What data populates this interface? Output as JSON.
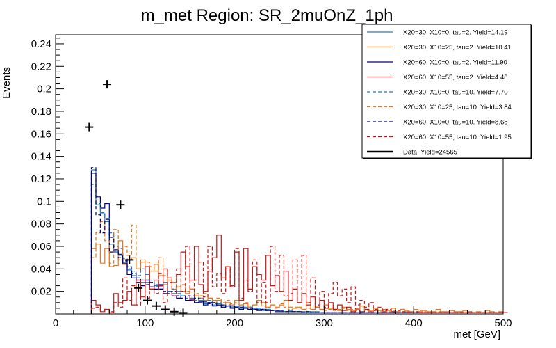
{
  "chart_data": {
    "type": "histogram-step",
    "title": "m_met Region: SR_2muOnZ_1ph",
    "xlabel": "met [GeV]",
    "ylabel": "Events",
    "xlim": [
      0,
      500
    ],
    "ylim": [
      0,
      0.248
    ],
    "x_ticks": [
      0,
      100,
      200,
      300,
      400,
      500
    ],
    "x_tick_labels": [
      "0",
      "100",
      "200",
      "300",
      "400",
      "500"
    ],
    "y_ticks": [
      0.02,
      0.04,
      0.06,
      0.08,
      0.1,
      0.12,
      0.14,
      0.16,
      0.18,
      0.2,
      0.22,
      0.24
    ],
    "y_tick_labels": [
      "0.02",
      "0.04",
      "0.06",
      "0.08",
      "0.1",
      "0.12",
      "0.14",
      "0.16",
      "0.18",
      "0.2",
      "0.22",
      "0.24"
    ],
    "legend_position": "top-right",
    "bin_start": 40,
    "bin_width": 5,
    "series": [
      {
        "name": "X20=30, X10=0, tau=2. Yield=14.19",
        "color": "#2b7bb9",
        "dashed": false,
        "values": [
          0.128,
          0.097,
          0.089,
          0.082,
          0.062,
          0.055,
          0.052,
          0.046,
          0.039,
          0.034,
          0.03,
          0.028,
          0.035,
          0.022,
          0.025,
          0.022,
          0.028,
          0.02,
          0.018,
          0.02,
          0.016,
          0.012,
          0.014,
          0.01,
          0.012,
          0.009,
          0.01,
          0.008,
          0.009,
          0.006,
          0.007,
          0.006,
          0.007,
          0.005,
          0.006,
          0.004,
          0.005,
          0.004,
          0.003,
          0.004,
          0.003,
          0.003,
          0.002,
          0.002,
          0.003,
          0.002,
          0.002,
          0.002,
          0.001,
          0.002,
          0.001,
          0.001,
          0.001,
          0.001,
          0.001,
          0.001,
          0.001,
          0.001,
          0.001,
          0.001,
          0.001,
          0.001,
          0.001,
          0.001,
          0.001,
          0.001,
          0.001,
          0.001,
          0.001,
          0.001,
          0.001,
          0.001,
          0.001,
          0.001,
          0.001,
          0.001,
          0.001,
          0.001,
          0.001,
          0.001,
          0.001,
          0.001,
          0.001,
          0.001,
          0.001,
          0.001,
          0.001,
          0.001,
          0.001,
          0.001,
          0.001,
          0.001,
          0.001
        ]
      },
      {
        "name": "X20=30, X10=25, tau=2. Yield=10.41",
        "color": "#e8751a",
        "dashed": false,
        "values": [
          0.058,
          0.062,
          0.045,
          0.058,
          0.042,
          0.043,
          0.065,
          0.044,
          0.048,
          0.05,
          0.04,
          0.046,
          0.03,
          0.038,
          0.044,
          0.034,
          0.026,
          0.03,
          0.022,
          0.024,
          0.02,
          0.018,
          0.022,
          0.016,
          0.014,
          0.012,
          0.014,
          0.01,
          0.012,
          0.008,
          0.01,
          0.008,
          0.012,
          0.008,
          0.009,
          0.006,
          0.008,
          0.012,
          0.01,
          0.006,
          0.008,
          0.006,
          0.008,
          0.012,
          0.006,
          0.005,
          0.006,
          0.004,
          0.01,
          0.004,
          0.006,
          0.004,
          0.008,
          0.005,
          0.004,
          0.003,
          0.006,
          0.004,
          0.003,
          0.004,
          0.007,
          0.004,
          0.003,
          0.005,
          0.003,
          0.004,
          0.003,
          0.005,
          0.002,
          0.004,
          0.003,
          0.002,
          0.004,
          0.002,
          0.003,
          0.002,
          0.002,
          0.004,
          0.002,
          0.002,
          0.003,
          0.002,
          0.002,
          0.003,
          0.002,
          0.001,
          0.002,
          0.001,
          0.003,
          0.002,
          0.001,
          0.002,
          0.001
        ]
      },
      {
        "name": "X20=60, X10=0, tau=2. Yield=11.90",
        "color": "#00007a",
        "dashed": false,
        "values": [
          0.125,
          0.104,
          0.094,
          0.098,
          0.055,
          0.057,
          0.053,
          0.045,
          0.035,
          0.032,
          0.028,
          0.025,
          0.03,
          0.024,
          0.022,
          0.026,
          0.018,
          0.02,
          0.016,
          0.014,
          0.016,
          0.012,
          0.013,
          0.01,
          0.011,
          0.008,
          0.01,
          0.007,
          0.008,
          0.006,
          0.007,
          0.005,
          0.006,
          0.004,
          0.005,
          0.004,
          0.004,
          0.003,
          0.004,
          0.003,
          0.003,
          0.002,
          0.003,
          0.002,
          0.002,
          0.002,
          0.002,
          0.001,
          0.002,
          0.001,
          0.001,
          0.001,
          0.001,
          0.001,
          0.001,
          0.001,
          0.001,
          0.001,
          0.001,
          0.001,
          0.001,
          0.001,
          0.001,
          0.001,
          0.001,
          0.001,
          0.001,
          0.001,
          0.001,
          0.001,
          0.001,
          0.001,
          0.001,
          0.001,
          0.001,
          0.001,
          0.001,
          0.001,
          0.001,
          0.001,
          0.001,
          0.001,
          0.001,
          0.001,
          0.001,
          0.001,
          0.001,
          0.001,
          0.001,
          0.001,
          0.001,
          0.001,
          0.001
        ]
      },
      {
        "name": "X20=60, X10=55, tau=2. Yield=4.48",
        "color": "#c81414",
        "dashed": false,
        "values": [
          0.012,
          0.008,
          0.002,
          0.004,
          0.001,
          0.018,
          0.01,
          0.012,
          0.02,
          0.008,
          0.03,
          0.015,
          0.042,
          0.022,
          0.03,
          0.025,
          0.04,
          0.032,
          0.028,
          0.035,
          0.055,
          0.042,
          0.03,
          0.06,
          0.026,
          0.02,
          0.038,
          0.05,
          0.07,
          0.032,
          0.042,
          0.025,
          0.055,
          0.012,
          0.058,
          0.022,
          0.042,
          0.035,
          0.03,
          0.052,
          0.025,
          0.034,
          0.02,
          0.038,
          0.012,
          0.022,
          0.01,
          0.018,
          0.008,
          0.015,
          0.006,
          0.012,
          0.005,
          0.01,
          0.004,
          0.008,
          0.003,
          0.006,
          0.002,
          0.005,
          0.002,
          0.004,
          0.002,
          0.003,
          0.001,
          0.002,
          0.001,
          0.002,
          0.001,
          0.001,
          0.001,
          0.001,
          0.001,
          0.001,
          0.001,
          0.001,
          0.001,
          0.001,
          0.001,
          0.001,
          0.001,
          0.001,
          0.001,
          0.001,
          0.001,
          0.001,
          0.001,
          0.001,
          0.001,
          0.001,
          0.001,
          0.001,
          0.001
        ]
      },
      {
        "name": "X20=30, X10=0, tau=10. Yield=7.70",
        "color": "#2b7bb9",
        "dashed": true,
        "values": [
          0.115,
          0.098,
          0.09,
          0.085,
          0.072,
          0.06,
          0.058,
          0.049,
          0.042,
          0.038,
          0.034,
          0.04,
          0.028,
          0.03,
          0.026,
          0.024,
          0.028,
          0.02,
          0.022,
          0.018,
          0.016,
          0.014,
          0.016,
          0.012,
          0.014,
          0.01,
          0.012,
          0.009,
          0.01,
          0.008,
          0.008,
          0.007,
          0.006,
          0.007,
          0.005,
          0.006,
          0.004,
          0.005,
          0.004,
          0.004,
          0.003,
          0.003,
          0.003,
          0.002,
          0.003,
          0.002,
          0.002,
          0.002,
          0.002,
          0.001,
          0.002,
          0.001,
          0.001,
          0.001,
          0.001,
          0.001,
          0.001,
          0.001,
          0.001,
          0.001,
          0.001,
          0.001,
          0.001,
          0.001,
          0.001,
          0.001,
          0.001,
          0.001,
          0.001,
          0.001,
          0.001,
          0.001,
          0.001,
          0.001,
          0.001,
          0.001,
          0.001,
          0.001,
          0.001,
          0.001,
          0.001,
          0.001,
          0.001,
          0.001,
          0.001,
          0.001,
          0.001,
          0.001,
          0.001,
          0.001,
          0.001,
          0.001,
          0.001
        ]
      },
      {
        "name": "X20=30, X10=25, tau=10. Yield=3.84",
        "color": "#e8751a",
        "dashed": true,
        "values": [
          0.05,
          0.072,
          0.082,
          0.065,
          0.045,
          0.075,
          0.048,
          0.06,
          0.052,
          0.079,
          0.04,
          0.048,
          0.046,
          0.042,
          0.038,
          0.05,
          0.034,
          0.03,
          0.028,
          0.024,
          0.026,
          0.02,
          0.022,
          0.018,
          0.016,
          0.018,
          0.014,
          0.012,
          0.014,
          0.01,
          0.012,
          0.009,
          0.01,
          0.008,
          0.01,
          0.007,
          0.008,
          0.012,
          0.007,
          0.006,
          0.008,
          0.005,
          0.009,
          0.006,
          0.004,
          0.006,
          0.005,
          0.004,
          0.005,
          0.004,
          0.006,
          0.004,
          0.003,
          0.004,
          0.003,
          0.004,
          0.005,
          0.003,
          0.004,
          0.003,
          0.007,
          0.003,
          0.002,
          0.003,
          0.002,
          0.003,
          0.002,
          0.003,
          0.002,
          0.004,
          0.002,
          0.002,
          0.002,
          0.003,
          0.002,
          0.002,
          0.001,
          0.002,
          0.001,
          0.002,
          0.003,
          0.001,
          0.002,
          0.001,
          0.002,
          0.001,
          0.001,
          0.001,
          0.001,
          0.001,
          0.001,
          0.001,
          0.001
        ]
      },
      {
        "name": "X20=60, X10=0, tau=10. Yield=8.68",
        "color": "#00007a",
        "dashed": true,
        "values": [
          0.13,
          0.088,
          0.072,
          0.084,
          0.068,
          0.056,
          0.05,
          0.047,
          0.04,
          0.036,
          0.032,
          0.03,
          0.026,
          0.028,
          0.024,
          0.022,
          0.02,
          0.018,
          0.02,
          0.016,
          0.014,
          0.016,
          0.012,
          0.014,
          0.01,
          0.011,
          0.009,
          0.01,
          0.008,
          0.008,
          0.007,
          0.007,
          0.006,
          0.006,
          0.005,
          0.005,
          0.004,
          0.004,
          0.004,
          0.003,
          0.003,
          0.003,
          0.002,
          0.002,
          0.002,
          0.002,
          0.002,
          0.001,
          0.002,
          0.001,
          0.001,
          0.001,
          0.001,
          0.001,
          0.001,
          0.001,
          0.001,
          0.001,
          0.001,
          0.001,
          0.001,
          0.001,
          0.001,
          0.001,
          0.001,
          0.001,
          0.001,
          0.001,
          0.001,
          0.001,
          0.001,
          0.001,
          0.001,
          0.001,
          0.001,
          0.001,
          0.001,
          0.001,
          0.001,
          0.001,
          0.001,
          0.001,
          0.001,
          0.001,
          0.001,
          0.001,
          0.001,
          0.001,
          0.001,
          0.001,
          0.001,
          0.001,
          0.001
        ]
      },
      {
        "name": "X20=60, X10=55, tau=10. Yield=1.95",
        "color": "#c81414",
        "dashed": true,
        "values": [
          0.005,
          0.006,
          0.003,
          0.004,
          0.002,
          0.01,
          0.006,
          0.032,
          0.012,
          0.025,
          0.008,
          0.03,
          0.014,
          0.022,
          0.018,
          0.036,
          0.01,
          0.028,
          0.016,
          0.04,
          0.02,
          0.06,
          0.012,
          0.03,
          0.046,
          0.015,
          0.06,
          0.024,
          0.036,
          0.018,
          0.04,
          0.024,
          0.058,
          0.014,
          0.03,
          0.02,
          0.048,
          0.01,
          0.028,
          0.01,
          0.06,
          0.02,
          0.052,
          0.016,
          0.018,
          0.048,
          0.01,
          0.052,
          0.01,
          0.032,
          0.008,
          0.02,
          0.006,
          0.018,
          0.028,
          0.016,
          0.022,
          0.01,
          0.024,
          0.008,
          0.012,
          0.006,
          0.01,
          0.004,
          0.006,
          0.003,
          0.004,
          0.002,
          0.003,
          0.002,
          0.002,
          0.001,
          0.002,
          0.001,
          0.001,
          0.001,
          0.001,
          0.001,
          0.001,
          0.001,
          0.001,
          0.001,
          0.001,
          0.001,
          0.001,
          0.001,
          0.001,
          0.001,
          0.001,
          0.001,
          0.001,
          0.001,
          0.001
        ]
      }
    ],
    "data": {
      "name": "Data. Yield=24565",
      "color": "#000000",
      "points": [
        {
          "x": 37.5,
          "y": 0.166
        },
        {
          "x": 57.5,
          "y": 0.204
        },
        {
          "x": 72.5,
          "y": 0.097
        },
        {
          "x": 82.5,
          "y": 0.048
        },
        {
          "x": 92.5,
          "y": 0.023
        },
        {
          "x": 102.5,
          "y": 0.012
        },
        {
          "x": 112.5,
          "y": 0.007
        },
        {
          "x": 122.5,
          "y": 0.004
        },
        {
          "x": 132.5,
          "y": 0.002
        },
        {
          "x": 142.5,
          "y": 0.001
        }
      ]
    }
  }
}
